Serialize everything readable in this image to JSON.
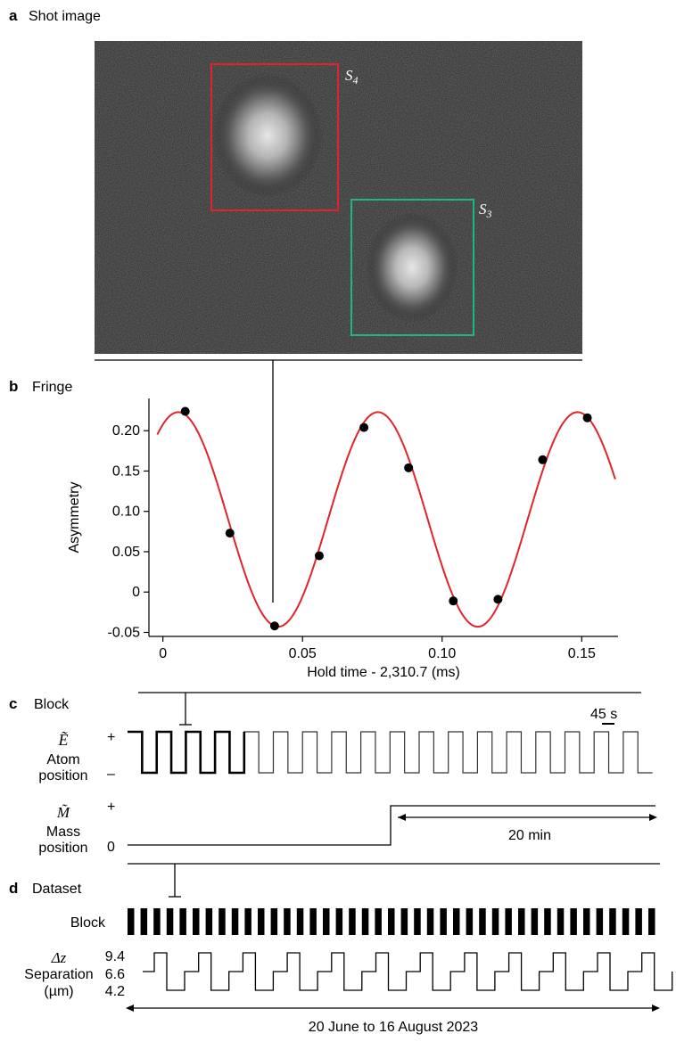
{
  "panel_a": {
    "letter": "a",
    "title": "Shot image",
    "roi_s4": {
      "label": "S",
      "sub": "4",
      "color": "#e0242a"
    },
    "roi_s3": {
      "label": "S",
      "sub": "3",
      "color": "#1fb58a"
    }
  },
  "panel_b": {
    "letter": "b",
    "title": "Fringe"
  },
  "chart_data": {
    "type": "scatter",
    "xlabel": "Hold time - 2,310.7 (ms)",
    "ylabel": "Asymmetry",
    "xlim": [
      -0.005,
      0.163
    ],
    "ylim": [
      -0.055,
      0.24
    ],
    "x_ticks": [
      0,
      0.05,
      0.1,
      0.15
    ],
    "x_tick_labels": [
      "0",
      "0.05",
      "0.10",
      "0.15"
    ],
    "y_ticks": [
      -0.05,
      0,
      0.05,
      0.1,
      0.15,
      0.2
    ],
    "y_tick_labels": [
      "-0.05",
      "0",
      "0.05",
      "0.10",
      "0.15",
      "0.20"
    ],
    "series": [
      {
        "kind": "points",
        "color": "#000000",
        "x": [
          0.008,
          0.024,
          0.04,
          0.056,
          0.072,
          0.088,
          0.104,
          0.12,
          0.136,
          0.152
        ],
        "y": [
          0.224,
          0.073,
          -0.042,
          0.045,
          0.204,
          0.154,
          -0.011,
          -0.009,
          0.164,
          0.216
        ]
      },
      {
        "kind": "fit",
        "color": "#e0242a",
        "offset": 0.09,
        "amplitude": 0.133,
        "period": 0.0715,
        "x_peak": 0.0055,
        "x_range": [
          -0.002,
          0.162
        ]
      }
    ],
    "grid": false,
    "legend": "none"
  },
  "panel_c": {
    "letter": "c",
    "title": "Block",
    "scale_bar": "45 s",
    "e_symbol": "Ẽ",
    "e_label_1": "Atom",
    "e_label_2": "position",
    "e_plus": "+",
    "e_minus": "–",
    "m_symbol": "M̃",
    "m_label_1": "Mass",
    "m_label_2": "position",
    "m_plus": "+",
    "m_zero": "0",
    "duration": "20 min"
  },
  "panel_d": {
    "letter": "d",
    "title": "Dataset",
    "block_label": "Block",
    "dz_symbol": "Δz",
    "sep_label": "Separation",
    "unit_label": "(µm)",
    "levels": [
      "9.4",
      "6.6",
      "4.2"
    ],
    "date_range": "20 June to 16 August 2023"
  }
}
